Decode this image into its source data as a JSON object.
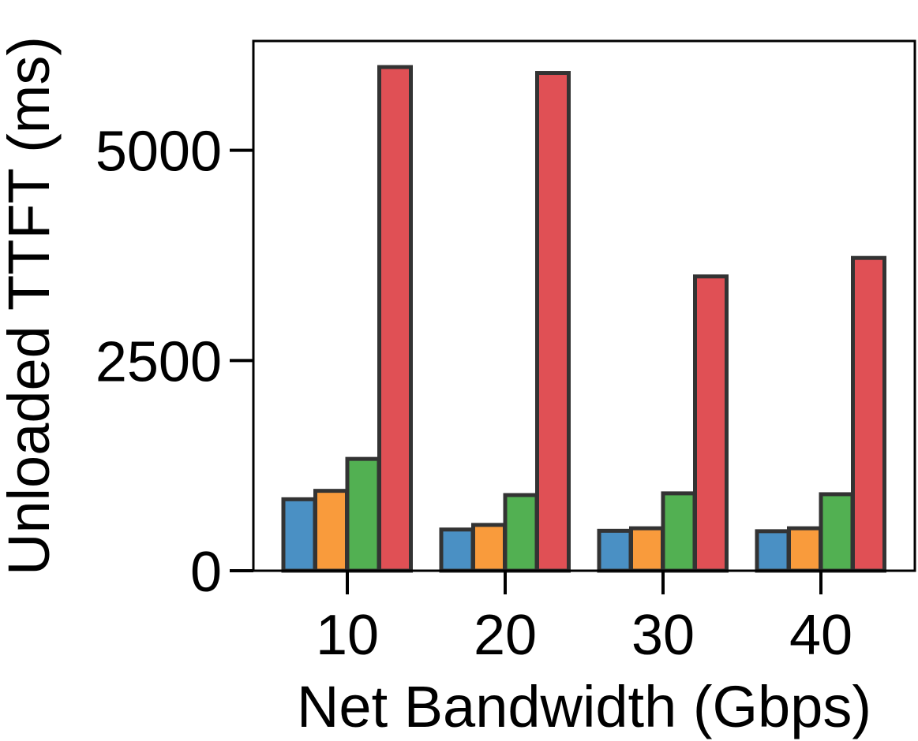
{
  "chart_data": {
    "type": "bar",
    "title": "",
    "xlabel": "Net Bandwidth (Gbps)",
    "ylabel": "Unloaded TTFT (ms)",
    "categories": [
      "10",
      "20",
      "30",
      "40"
    ],
    "yticks": [
      0,
      2500,
      5000
    ],
    "ytick_labels": [
      "0",
      "2500",
      "5000"
    ],
    "ylim": [
      0,
      6300
    ],
    "grid": false,
    "legend": "none",
    "series": [
      {
        "color": "#4a90c4",
        "values": [
          850,
          490,
          475,
          470
        ]
      },
      {
        "color": "#f99b3c",
        "values": [
          950,
          545,
          505,
          505
        ]
      },
      {
        "color": "#52b052",
        "values": [
          1330,
          900,
          920,
          910
        ]
      },
      {
        "color": "#e05055",
        "values": [
          5990,
          5920,
          3500,
          3720
        ]
      }
    ],
    "bar_edge_color": "#333333"
  }
}
